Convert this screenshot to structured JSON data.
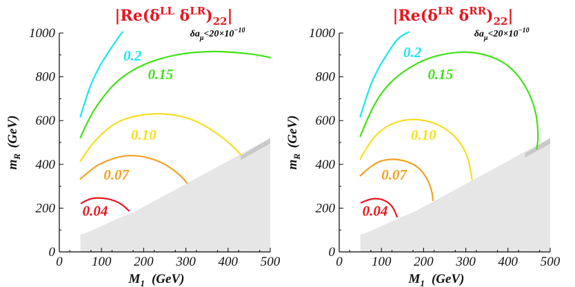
{
  "chart_data": [
    {
      "type": "line",
      "title_parts": [
        "|Re(δ",
        "LL",
        " δ",
        "LR",
        ")",
        "22",
        "|"
      ],
      "xlabel_main": "M",
      "xlabel_sub": "1",
      "xlabel_unit": "(GeV)",
      "ylabel_main": "m",
      "ylabel_sub": "R",
      "ylabel_unit": "(GeV)",
      "xlim": [
        0,
        500
      ],
      "ylim": [
        0,
        1000
      ],
      "xticks": [
        0,
        100,
        200,
        300,
        400,
        500
      ],
      "yticks": [
        0,
        200,
        400,
        600,
        800,
        1000
      ],
      "annotation": {
        "text": "δa",
        "sub": "μ",
        "rest": "<20×10",
        "sup": "−10"
      },
      "excluded_region": [
        [
          50,
          80
        ],
        [
          60,
          85
        ],
        [
          80,
          100
        ],
        [
          130,
          145
        ],
        [
          180,
          185
        ],
        [
          500,
          520
        ],
        [
          500,
          0
        ],
        [
          50,
          0
        ]
      ],
      "excluded_edge": [
        [
          430,
          440
        ],
        [
          500,
          520
        ]
      ],
      "series": [
        {
          "name": "0.04",
          "color": "#e8141e",
          "label_xy": [
            55,
            165
          ],
          "points": [
            [
              52,
              222
            ],
            [
              70,
              244
            ],
            [
              100,
              248
            ],
            [
              130,
              236
            ],
            [
              150,
              215
            ],
            [
              165,
              188
            ]
          ]
        },
        {
          "name": "0.07",
          "color": "#f2a11f",
          "label_xy": [
            105,
            330
          ],
          "points": [
            [
              50,
              333
            ],
            [
              80,
              385
            ],
            [
              110,
              415
            ],
            [
              150,
              440
            ],
            [
              190,
              440
            ],
            [
              230,
              420
            ],
            [
              260,
              390
            ],
            [
              290,
              345
            ],
            [
              302,
              315
            ]
          ]
        },
        {
          "name": "0.10",
          "color": "#f6de1c",
          "label_xy": [
            170,
            513
          ],
          "points": [
            [
              50,
              415
            ],
            [
              70,
              475
            ],
            [
              100,
              540
            ],
            [
              140,
              600
            ],
            [
              200,
              630
            ],
            [
              260,
              632
            ],
            [
              320,
              605
            ],
            [
              380,
              535
            ],
            [
              415,
              475
            ],
            [
              430,
              445
            ]
          ]
        },
        {
          "name": "0.15",
          "color": "#3ee214",
          "label_xy": [
            210,
            790
          ],
          "points": [
            [
              50,
              522
            ],
            [
              70,
              610
            ],
            [
              100,
              700
            ],
            [
              140,
              790
            ],
            [
              200,
              860
            ],
            [
              280,
              905
            ],
            [
              360,
              918
            ],
            [
              430,
              910
            ],
            [
              470,
              900
            ],
            [
              500,
              888
            ]
          ]
        },
        {
          "name": "0.2",
          "color": "#18e6f0",
          "label_xy": [
            152,
            875
          ],
          "points": [
            [
              50,
              618
            ],
            [
              70,
              745
            ],
            [
              90,
              830
            ],
            [
              115,
              910
            ],
            [
              140,
              980
            ],
            [
              150,
              1005
            ]
          ]
        }
      ]
    },
    {
      "type": "line",
      "title_parts": [
        "|Re(δ",
        "LR",
        " δ",
        "RR",
        ")",
        "22",
        "|"
      ],
      "xlabel_main": "M",
      "xlabel_sub": "1",
      "xlabel_unit": "(GeV)",
      "ylabel_main": "m",
      "ylabel_sub": "R",
      "ylabel_unit": "(GeV)",
      "xlim": [
        0,
        500
      ],
      "ylim": [
        0,
        1000
      ],
      "xticks": [
        0,
        100,
        200,
        300,
        400,
        500
      ],
      "yticks": [
        0,
        200,
        400,
        600,
        800,
        1000
      ],
      "annotation": {
        "text": "δa",
        "sub": "μ",
        "rest": "<20×10",
        "sup": "−10"
      },
      "excluded_region": [
        [
          50,
          80
        ],
        [
          60,
          85
        ],
        [
          80,
          100
        ],
        [
          130,
          145
        ],
        [
          180,
          185
        ],
        [
          500,
          520
        ],
        [
          500,
          0
        ],
        [
          50,
          0
        ]
      ],
      "excluded_edge": [
        [
          440,
          450
        ],
        [
          500,
          520
        ]
      ],
      "series": [
        {
          "name": "0.04",
          "color": "#e8141e",
          "label_xy": [
            55,
            165
          ],
          "points": [
            [
              52,
              225
            ],
            [
              70,
              240
            ],
            [
              90,
              245
            ],
            [
              110,
              235
            ],
            [
              128,
              205
            ],
            [
              137,
              160
            ]
          ]
        },
        {
          "name": "0.07",
          "color": "#f2a11f",
          "label_xy": [
            100,
            330
          ],
          "points": [
            [
              50,
              348
            ],
            [
              70,
              385
            ],
            [
              100,
              420
            ],
            [
              140,
              425
            ],
            [
              180,
              400
            ],
            [
              205,
              350
            ],
            [
              220,
              280
            ],
            [
              222,
              235
            ]
          ]
        },
        {
          "name": "0.10",
          "color": "#f6de1c",
          "label_xy": [
            170,
            513
          ],
          "points": [
            [
              50,
              425
            ],
            [
              70,
              495
            ],
            [
              100,
              560
            ],
            [
              140,
              600
            ],
            [
              190,
              608
            ],
            [
              240,
              580
            ],
            [
              280,
              520
            ],
            [
              305,
              440
            ],
            [
              315,
              330
            ]
          ]
        },
        {
          "name": "0.15",
          "color": "#3ee214",
          "label_xy": [
            210,
            790
          ],
          "points": [
            [
              50,
              528
            ],
            [
              70,
              625
            ],
            [
              100,
              730
            ],
            [
              140,
              810
            ],
            [
              200,
              880
            ],
            [
              260,
              910
            ],
            [
              320,
              915
            ],
            [
              380,
              880
            ],
            [
              420,
              820
            ],
            [
              450,
              730
            ],
            [
              468,
              630
            ],
            [
              472,
              520
            ],
            [
              468,
              470
            ]
          ]
        },
        {
          "name": "0.2",
          "color": "#18e6f0",
          "label_xy": [
            152,
            890
          ],
          "points": [
            [
              50,
              618
            ],
            [
              70,
              745
            ],
            [
              90,
              830
            ],
            [
              115,
              910
            ],
            [
              140,
              980
            ],
            [
              165,
              1005
            ]
          ]
        }
      ]
    }
  ]
}
